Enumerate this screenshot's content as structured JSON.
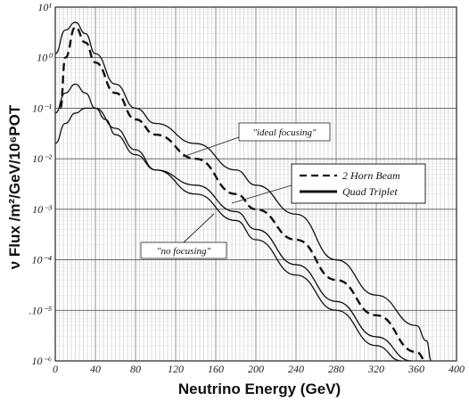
{
  "chart_data": {
    "type": "line",
    "xlabel": "Neutrino Energy (GeV)",
    "ylabel": "ν Flux /m²/GeV/10⁶POT",
    "xlim": [
      0,
      400
    ],
    "ylim": [
      1e-06,
      10
    ],
    "y_scale": "log",
    "grid": true,
    "x_ticks": [
      "0",
      "40",
      "80",
      "120",
      "160",
      "200",
      "240",
      "280",
      "320",
      "360",
      "400"
    ],
    "y_ticks": [
      {
        "value": 10,
        "label": "10¹"
      },
      {
        "value": 1,
        "label": "10⁰"
      },
      {
        "value": 0.1,
        "label": "10⁻¹"
      },
      {
        "value": 0.01,
        "label": "10⁻²"
      },
      {
        "value": 0.001,
        "label": "10⁻³"
      },
      {
        "value": 0.0001,
        "label": "10⁻⁴"
      },
      {
        "value": 1e-05,
        "label": ".10⁻⁵"
      },
      {
        "value": 1e-06,
        "label": "10⁻⁶"
      }
    ],
    "legend": {
      "placement": "right",
      "entries": [
        {
          "label": "2 Horn Beam",
          "style": "dashed"
        },
        {
          "label": "Quad Triplet",
          "style": "solid-thick"
        }
      ]
    },
    "annotations": [
      {
        "text": "\"ideal focusing\""
      },
      {
        "text": "\"no focusing\""
      }
    ],
    "series": [
      {
        "style": "solid-thin",
        "x": [
          0,
          10,
          20,
          30,
          40,
          60,
          80,
          100,
          140,
          180,
          200,
          240,
          280,
          320,
          360,
          370,
          375
        ],
        "y": [
          1.2,
          3.5,
          5.0,
          3.0,
          1.2,
          0.3,
          0.1,
          0.05,
          0.02,
          0.006,
          0.003,
          0.0008,
          0.0001,
          2e-05,
          5e-06,
          2.5e-06,
          1e-06
        ]
      },
      {
        "style": "dashed",
        "x": [
          5,
          10,
          20,
          30,
          40,
          60,
          80,
          100,
          140,
          180,
          200,
          240,
          280,
          320,
          360,
          370
        ],
        "y": [
          0.1,
          1.0,
          4.0,
          2.0,
          0.8,
          0.2,
          0.06,
          0.03,
          0.01,
          0.002,
          0.001,
          0.00025,
          4e-05,
          8e-06,
          1.5e-06,
          1e-06
        ]
      },
      {
        "style": "solid-thin",
        "x": [
          0,
          10,
          20,
          30,
          40,
          60,
          80,
          100,
          140,
          180,
          200,
          240,
          280,
          320,
          355
        ],
        "y": [
          0.08,
          0.2,
          0.3,
          0.2,
          0.1,
          0.04,
          0.015,
          0.006,
          0.003,
          0.0009,
          0.0004,
          8e-05,
          1.5e-05,
          3e-06,
          1e-06
        ]
      },
      {
        "style": "solid-thin",
        "x": [
          0,
          10,
          20,
          30,
          40,
          50,
          60,
          80,
          100,
          140,
          180,
          200,
          240,
          280,
          320,
          345
        ],
        "y": [
          0.02,
          0.05,
          0.08,
          0.1,
          0.1,
          0.06,
          0.03,
          0.012,
          0.006,
          0.002,
          0.0006,
          0.00025,
          5e-05,
          1e-05,
          2e-06,
          1e-06
        ]
      }
    ]
  }
}
